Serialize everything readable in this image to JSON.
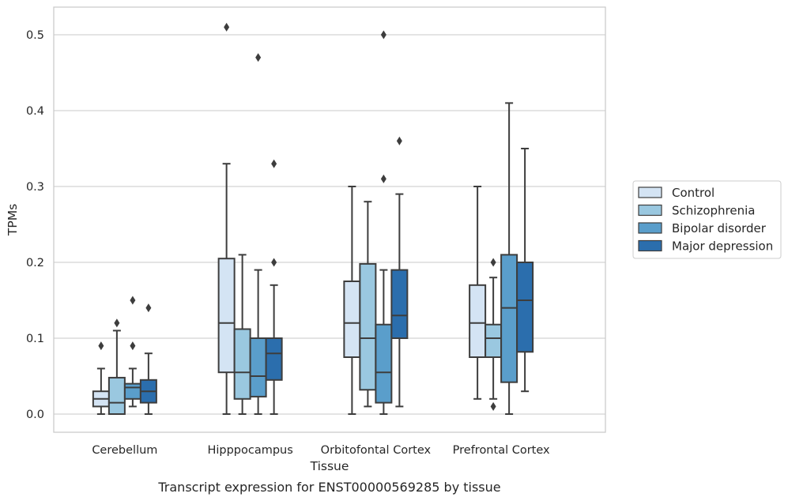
{
  "chart_data": {
    "type": "box",
    "xlabel": "Tissue",
    "ylabel": "TPMs",
    "caption": "Transcript expression for ENST00000569285 by tissue",
    "ylim": [
      -0.025,
      0.537
    ],
    "yticks": [
      0.0,
      0.1,
      0.2,
      0.3,
      0.4,
      0.5
    ],
    "ytick_labels": [
      "0.0",
      "0.1",
      "0.2",
      "0.3",
      "0.4",
      "0.5"
    ],
    "grid": "horizontal",
    "legend_position": "right",
    "categories": [
      "Cerebellum",
      "Hipppocampus",
      "Orbitofontal Cortex",
      "Prefrontal Cortex"
    ],
    "series": [
      {
        "name": "Control",
        "color": "#d4e4f4",
        "boxes": [
          {
            "whislo": 0.0,
            "q1": 0.01,
            "med": 0.02,
            "q3": 0.03,
            "whishi": 0.06,
            "fliers": [
              0.09
            ]
          },
          {
            "whislo": 0.0,
            "q1": 0.055,
            "med": 0.12,
            "q3": 0.205,
            "whishi": 0.33,
            "fliers": [
              0.51
            ]
          },
          {
            "whislo": 0.0,
            "q1": 0.075,
            "med": 0.12,
            "q3": 0.175,
            "whishi": 0.3,
            "fliers": []
          },
          {
            "whislo": 0.02,
            "q1": 0.075,
            "med": 0.12,
            "q3": 0.17,
            "whishi": 0.3,
            "fliers": []
          }
        ]
      },
      {
        "name": "Schizophrenia",
        "color": "#9ac8e0",
        "boxes": [
          {
            "whislo": 0.0,
            "q1": 0.0,
            "med": 0.015,
            "q3": 0.048,
            "whishi": 0.11,
            "fliers": [
              0.12
            ]
          },
          {
            "whislo": 0.0,
            "q1": 0.02,
            "med": 0.055,
            "q3": 0.112,
            "whishi": 0.21,
            "fliers": []
          },
          {
            "whislo": 0.01,
            "q1": 0.032,
            "med": 0.1,
            "q3": 0.198,
            "whishi": 0.28,
            "fliers": []
          },
          {
            "whislo": 0.02,
            "q1": 0.075,
            "med": 0.1,
            "q3": 0.118,
            "whishi": 0.18,
            "fliers": [
              0.2,
              0.01
            ]
          }
        ]
      },
      {
        "name": "Bipolar disorder",
        "color": "#5a9ecb",
        "boxes": [
          {
            "whislo": 0.01,
            "q1": 0.02,
            "med": 0.035,
            "q3": 0.04,
            "whishi": 0.06,
            "fliers": [
              0.09,
              0.15
            ]
          },
          {
            "whislo": 0.0,
            "q1": 0.023,
            "med": 0.05,
            "q3": 0.1,
            "whishi": 0.19,
            "fliers": [
              0.47
            ]
          },
          {
            "whislo": 0.0,
            "q1": 0.015,
            "med": 0.055,
            "q3": 0.118,
            "whishi": 0.19,
            "fliers": [
              0.31,
              0.5
            ]
          },
          {
            "whislo": 0.0,
            "q1": 0.042,
            "med": 0.14,
            "q3": 0.21,
            "whishi": 0.41,
            "fliers": []
          }
        ]
      },
      {
        "name": "Major depression",
        "color": "#2b6ead",
        "boxes": [
          {
            "whislo": 0.0,
            "q1": 0.015,
            "med": 0.03,
            "q3": 0.045,
            "whishi": 0.08,
            "fliers": [
              0.14
            ]
          },
          {
            "whislo": 0.0,
            "q1": 0.045,
            "med": 0.08,
            "q3": 0.1,
            "whishi": 0.17,
            "fliers": [
              0.2,
              0.33
            ]
          },
          {
            "whislo": 0.01,
            "q1": 0.1,
            "med": 0.13,
            "q3": 0.19,
            "whishi": 0.29,
            "fliers": [
              0.36
            ]
          },
          {
            "whislo": 0.03,
            "q1": 0.082,
            "med": 0.15,
            "q3": 0.2,
            "whishi": 0.35,
            "fliers": []
          }
        ]
      }
    ]
  }
}
